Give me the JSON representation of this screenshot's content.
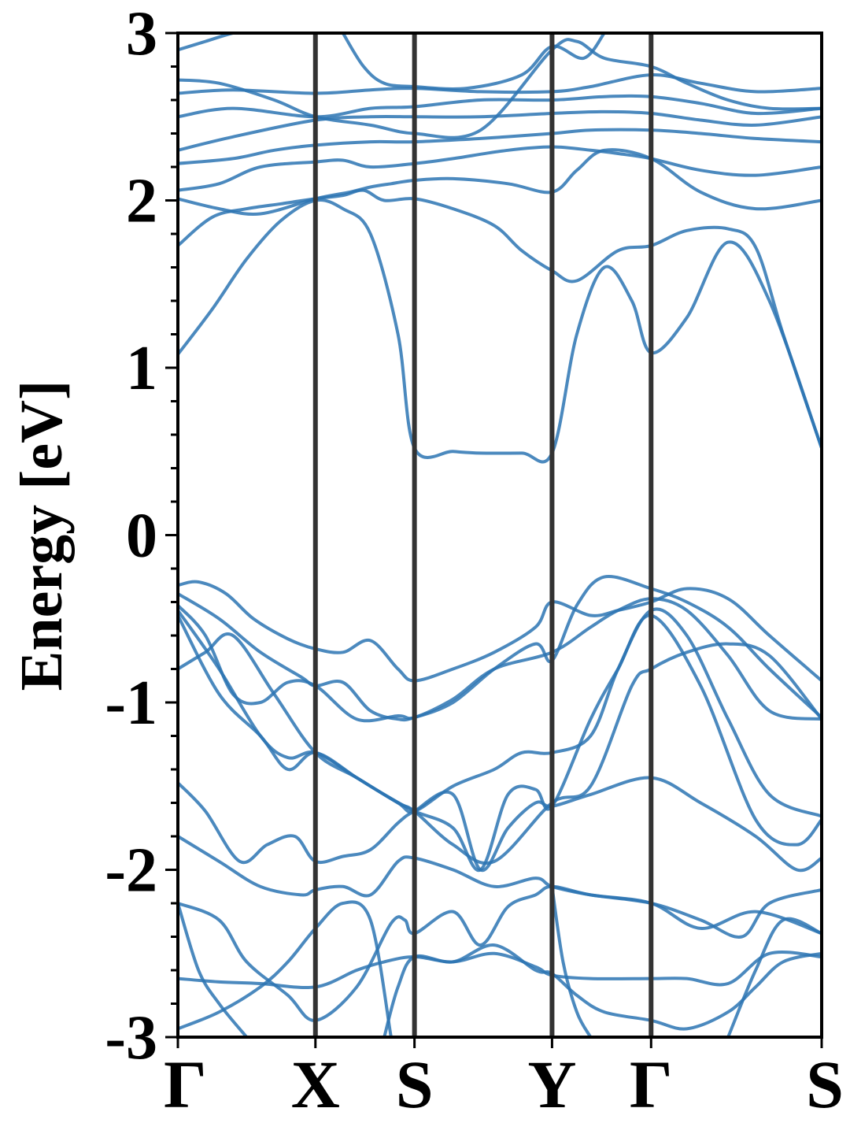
{
  "chart_data": {
    "type": "line",
    "title": "",
    "xlabel": "",
    "ylabel": "Energy [eV]",
    "ylim": [
      -3,
      3
    ],
    "y_ticks": [
      "3",
      "2",
      "1",
      "0",
      "-1",
      "-2",
      "-3"
    ],
    "y_tick_values": [
      3,
      2,
      1,
      0,
      -1,
      -2,
      -3
    ],
    "minor_y_step": 0.2,
    "k_path": {
      "labels": [
        "Γ",
        "X",
        "S",
        "Y",
        "Γ",
        "S"
      ],
      "positions": [
        0,
        1,
        1.72,
        2.72,
        3.44,
        4.68
      ]
    },
    "grid": false,
    "legend": "none",
    "colors": {
      "band": "#2b74b3",
      "kline": "#333333",
      "axes": "#000000"
    },
    "series": [
      {
        "x": [
          0,
          0.25,
          0.5,
          0.75,
          1,
          1.2,
          1.4,
          1.6,
          1.72,
          2,
          2.2,
          2.5,
          2.72,
          2.9,
          3.1,
          3.3,
          3.44,
          3.7,
          4,
          4.3,
          4.68
        ],
        "y": [
          1.08,
          1.35,
          1.65,
          1.88,
          2.0,
          1.95,
          1.8,
          1.2,
          0.52,
          0.5,
          0.49,
          0.49,
          0.49,
          1.2,
          1.6,
          1.4,
          1.09,
          1.3,
          1.75,
          1.4,
          0.52
        ]
      },
      {
        "x": [
          0,
          0.25,
          0.5,
          0.75,
          1,
          1.2,
          1.35,
          1.5,
          1.72,
          2,
          2.3,
          2.5,
          2.72,
          2.9,
          3.2,
          3.44,
          3.7,
          4,
          4.2,
          4.4,
          4.68
        ],
        "y": [
          1.73,
          1.9,
          1.95,
          1.98,
          2.01,
          2.03,
          2.06,
          2.0,
          2.01,
          1.95,
          1.85,
          1.7,
          1.58,
          1.52,
          1.7,
          1.73,
          1.82,
          1.83,
          1.72,
          1.2,
          0.52
        ]
      },
      {
        "x": [
          0,
          0.3,
          0.6,
          1,
          1.25,
          1.4,
          1.55,
          1.72,
          2,
          2.4,
          2.72,
          2.9,
          3.1,
          3.44,
          3.8,
          4.2,
          4.68
        ],
        "y": [
          2.01,
          1.95,
          1.92,
          2.01,
          2.05,
          2.08,
          2.1,
          2.12,
          2.13,
          2.1,
          2.05,
          2.18,
          2.3,
          2.25,
          2.05,
          1.95,
          2.0
        ]
      },
      {
        "x": [
          0,
          0.3,
          0.6,
          1,
          1.2,
          1.4,
          1.72,
          2,
          2.4,
          2.72,
          3,
          3.2,
          3.44,
          3.8,
          4.2,
          4.68
        ],
        "y": [
          2.06,
          2.1,
          2.2,
          2.23,
          2.24,
          2.2,
          2.22,
          2.25,
          2.3,
          2.32,
          2.3,
          2.28,
          2.25,
          2.18,
          2.15,
          2.2
        ]
      },
      {
        "x": [
          0,
          0.4,
          0.7,
          1,
          1.4,
          1.72,
          2.2,
          2.72,
          3.0,
          3.44,
          3.8,
          4.2,
          4.68
        ],
        "y": [
          2.22,
          2.25,
          2.3,
          2.33,
          2.35,
          2.35,
          2.37,
          2.4,
          2.42,
          2.42,
          2.4,
          2.37,
          2.35
        ]
      },
      {
        "x": [
          0,
          0.4,
          1,
          1.4,
          1.72,
          2.2,
          2.72,
          3.1,
          3.44,
          3.8,
          4.2,
          4.68
        ],
        "y": [
          2.3,
          2.38,
          2.48,
          2.5,
          2.5,
          2.5,
          2.52,
          2.53,
          2.52,
          2.48,
          2.45,
          2.5
        ]
      },
      {
        "x": [
          0,
          0.4,
          1,
          1.4,
          1.72,
          2.2,
          2.72,
          3.1,
          3.44,
          3.8,
          4.2,
          4.68
        ],
        "y": [
          2.5,
          2.55,
          2.5,
          2.55,
          2.56,
          2.6,
          2.6,
          2.62,
          2.62,
          2.58,
          2.52,
          2.55
        ]
      },
      {
        "x": [
          0,
          0.4,
          1,
          1.4,
          1.72,
          2.2,
          2.72,
          3.0,
          3.44,
          3.8,
          4.2,
          4.68
        ],
        "y": [
          2.64,
          2.66,
          2.64,
          2.66,
          2.67,
          2.65,
          2.65,
          2.68,
          2.75,
          2.7,
          2.65,
          2.67
        ]
      },
      {
        "x": [
          0,
          0.3,
          0.7,
          1,
          1.4,
          1.72,
          2.2,
          2.72,
          2.9,
          3.1,
          3.44,
          3.7,
          4,
          4.3,
          4.68
        ],
        "y": [
          2.72,
          2.7,
          2.6,
          2.5,
          2.45,
          2.4,
          2.42,
          2.9,
          2.95,
          2.85,
          2.8,
          2.7,
          2.6,
          2.55,
          2.55
        ]
      },
      {
        "x": [
          1.2,
          1.35,
          1.5,
          1.72,
          2.1,
          2.5,
          2.72,
          2.95,
          3.1
        ],
        "y": [
          3.0,
          2.8,
          2.7,
          2.68,
          2.67,
          2.75,
          2.92,
          2.85,
          3.0
        ]
      },
      {
        "x": [
          0,
          0.2,
          0.4,
          0.5
        ],
        "y": [
          2.9,
          2.95,
          3.0,
          3.0
        ]
      },
      {
        "x": [
          0,
          0.15,
          0.35,
          0.55,
          0.8,
          1,
          1.2,
          1.4,
          1.6,
          1.72,
          2,
          2.3,
          2.6,
          2.72,
          3,
          3.2,
          3.44,
          3.7,
          4,
          4.3,
          4.68
        ],
        "y": [
          -0.3,
          -0.28,
          -0.35,
          -0.5,
          -0.62,
          -0.68,
          -0.7,
          -0.63,
          -0.8,
          -0.87,
          -0.8,
          -0.7,
          -0.55,
          -0.4,
          -0.48,
          -0.45,
          -0.4,
          -0.32,
          -0.38,
          -0.6,
          -0.87
        ]
      },
      {
        "x": [
          0,
          0.3,
          0.6,
          0.9,
          1,
          1.2,
          1.4,
          1.6,
          1.72,
          2,
          2.3,
          2.6,
          2.72,
          2.9,
          3.1,
          3.44,
          3.7,
          4,
          4.3,
          4.68
        ],
        "y": [
          -0.35,
          -0.5,
          -0.7,
          -0.85,
          -0.9,
          -0.88,
          -1.05,
          -1.1,
          -1.09,
          -1.0,
          -0.8,
          -0.65,
          -0.75,
          -0.42,
          -0.25,
          -0.32,
          -0.4,
          -0.55,
          -0.8,
          -1.09
        ]
      },
      {
        "x": [
          0,
          0.2,
          0.4,
          0.6,
          0.8,
          1,
          1.3,
          1.6,
          1.72,
          2,
          2.3,
          2.72,
          3,
          3.2,
          3.44,
          3.7,
          4,
          4.3,
          4.68
        ],
        "y": [
          -0.42,
          -0.6,
          -0.95,
          -1.0,
          -0.88,
          -0.9,
          -1.1,
          -1.08,
          -1.09,
          -0.98,
          -0.8,
          -0.7,
          -0.55,
          -0.45,
          -0.38,
          -0.45,
          -0.72,
          -1.05,
          -1.1
        ]
      },
      {
        "x": [
          0,
          0.2,
          0.4,
          0.7,
          1,
          1.3,
          1.6,
          1.72,
          2,
          2.3,
          2.72,
          3.0,
          3.3,
          3.44,
          3.7,
          4,
          4.3,
          4.68
        ],
        "y": [
          -0.8,
          -0.7,
          -0.6,
          -0.95,
          -1.3,
          -1.45,
          -1.6,
          -1.65,
          -1.85,
          -1.95,
          -1.6,
          -1.5,
          -0.9,
          -0.8,
          -0.7,
          -0.65,
          -0.72,
          -1.1
        ]
      },
      {
        "x": [
          0,
          0.3,
          0.6,
          0.8,
          1,
          1.3,
          1.6,
          1.72,
          2,
          2.3,
          2.5,
          2.72,
          3.0,
          3.2,
          3.44,
          3.7,
          4,
          4.3,
          4.68
        ],
        "y": [
          -0.45,
          -0.8,
          -1.2,
          -1.33,
          -1.3,
          -1.45,
          -1.6,
          -1.65,
          -1.5,
          -1.4,
          -1.3,
          -1.3,
          -1.2,
          -0.8,
          -0.45,
          -0.6,
          -1.1,
          -1.55,
          -1.68
        ]
      },
      {
        "x": [
          0,
          0.3,
          0.6,
          0.8,
          1,
          1.3,
          1.5,
          1.72,
          2,
          2.2,
          2.4,
          2.6,
          2.72,
          3.0,
          3.2,
          3.44,
          3.8,
          4.2,
          4.5,
          4.68
        ],
        "y": [
          -0.48,
          -0.95,
          -1.2,
          -1.4,
          -1.3,
          -1.45,
          -1.55,
          -1.65,
          -1.75,
          -2.0,
          -1.55,
          -1.52,
          -1.62,
          -1.1,
          -0.8,
          -0.48,
          -0.9,
          -1.7,
          -1.85,
          -1.7
        ]
      },
      {
        "x": [
          0,
          0.2,
          0.45,
          0.65,
          0.85,
          1,
          1.2,
          1.4,
          1.6,
          1.72,
          2,
          2.2,
          2.4,
          2.6,
          2.72,
          3.0,
          3.44,
          3.8,
          4.2,
          4.5,
          4.68
        ],
        "y": [
          -1.48,
          -1.65,
          -1.95,
          -1.85,
          -1.8,
          -1.95,
          -1.92,
          -1.88,
          -1.72,
          -1.65,
          -1.55,
          -2.0,
          -1.75,
          -1.6,
          -1.62,
          -1.55,
          -1.45,
          -1.6,
          -1.8,
          -2.0,
          -1.93
        ]
      },
      {
        "x": [
          0,
          0.3,
          0.6,
          0.9,
          1,
          1.2,
          1.4,
          1.6,
          1.72,
          2,
          2.3,
          2.6,
          2.72,
          3,
          3.44,
          3.8,
          4.1,
          4.3,
          4.68
        ],
        "y": [
          -1.8,
          -1.95,
          -2.1,
          -2.15,
          -2.12,
          -2.1,
          -2.15,
          -1.95,
          -1.93,
          -2.0,
          -2.1,
          -2.05,
          -2.1,
          -2.15,
          -2.2,
          -2.3,
          -2.4,
          -2.2,
          -2.12
        ]
      },
      {
        "x": [
          0,
          0.3,
          0.5,
          0.8,
          1,
          1.3,
          1.55,
          1.65,
          1.72,
          2,
          2.2,
          2.4,
          2.6,
          2.72,
          3,
          3.44,
          3.8,
          4.2,
          4.68
        ],
        "y": [
          -2.2,
          -2.3,
          -2.55,
          -2.75,
          -2.9,
          -2.7,
          -2.32,
          -2.3,
          -2.38,
          -2.25,
          -2.45,
          -2.22,
          -2.15,
          -2.1,
          -2.15,
          -2.2,
          -2.35,
          -2.25,
          -2.38
        ]
      },
      {
        "x": [
          0,
          0.3,
          0.6,
          1,
          1.3,
          1.5,
          1.72,
          2,
          2.3,
          2.6,
          2.72,
          3,
          3.44,
          3.7,
          4,
          4.3,
          4.68
        ],
        "y": [
          -2.65,
          -2.67,
          -2.68,
          -2.7,
          -2.6,
          -2.55,
          -2.52,
          -2.55,
          -2.5,
          -2.58,
          -2.63,
          -2.65,
          -2.65,
          -2.65,
          -2.68,
          -2.5,
          -2.52
        ]
      },
      {
        "x": [
          0,
          0.3,
          0.6,
          0.8,
          1,
          1.2,
          1.4,
          1.55
        ],
        "y": [
          -2.95,
          -2.85,
          -2.7,
          -2.55,
          -2.35,
          -2.2,
          -2.3,
          -3.0
        ]
      },
      {
        "x": [
          1.5,
          1.6,
          1.72,
          2,
          2.3,
          2.6,
          2.72,
          2.9,
          3.1,
          3.44,
          3.7,
          4,
          4.2,
          4.4,
          4.68
        ],
        "y": [
          -3.0,
          -2.7,
          -2.52,
          -2.55,
          -2.45,
          -2.6,
          -2.62,
          -2.75,
          -2.85,
          -2.9,
          -2.95,
          -2.85,
          -2.7,
          -2.55,
          -2.5
        ]
      },
      {
        "x": [
          0,
          0.15,
          0.3,
          0.5
        ],
        "y": [
          -2.2,
          -2.6,
          -2.8,
          -3.0
        ]
      },
      {
        "x": [
          2.72,
          2.8,
          2.9,
          3.0
        ],
        "y": [
          -2.1,
          -2.55,
          -2.85,
          -3.0
        ]
      },
      {
        "x": [
          4.0,
          4.2,
          4.4,
          4.68
        ],
        "y": [
          -3.0,
          -2.6,
          -2.3,
          -2.38
        ]
      }
    ]
  }
}
